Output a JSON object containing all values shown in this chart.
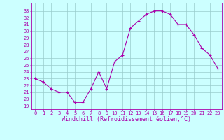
{
  "x": [
    0,
    1,
    2,
    3,
    4,
    5,
    6,
    7,
    8,
    9,
    10,
    11,
    12,
    13,
    14,
    15,
    16,
    17,
    18,
    19,
    20,
    21,
    22,
    23
  ],
  "y": [
    23.0,
    22.5,
    21.5,
    21.0,
    21.0,
    19.5,
    19.5,
    21.5,
    24.0,
    21.5,
    25.5,
    26.5,
    30.5,
    31.5,
    32.5,
    33.0,
    33.0,
    32.5,
    31.0,
    31.0,
    29.5,
    27.5,
    26.5,
    24.5
  ],
  "color": "#aa00aa",
  "bg_color": "#ccffff",
  "grid_color": "#99cccc",
  "xlabel": "Windchill (Refroidissement éolien,°C)",
  "xlim": [
    -0.5,
    23.5
  ],
  "ylim": [
    18.5,
    34.2
  ],
  "yticks": [
    19,
    20,
    21,
    22,
    23,
    24,
    25,
    26,
    27,
    28,
    29,
    30,
    31,
    32,
    33
  ],
  "xticks": [
    0,
    1,
    2,
    3,
    4,
    5,
    6,
    7,
    8,
    9,
    10,
    11,
    12,
    13,
    14,
    15,
    16,
    17,
    18,
    19,
    20,
    21,
    22,
    23
  ],
  "tick_color": "#aa00aa",
  "tick_fontsize": 5.0,
  "xlabel_fontsize": 6.0,
  "marker": "+"
}
